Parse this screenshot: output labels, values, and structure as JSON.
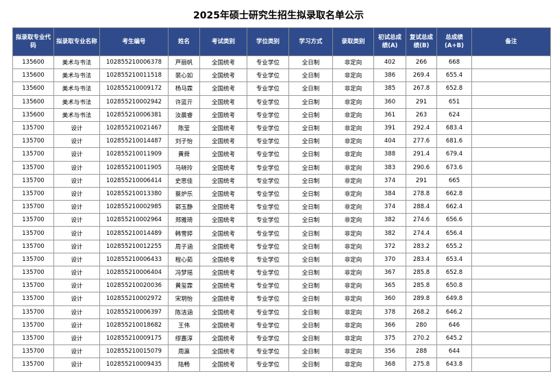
{
  "header": {
    "title": "2025年硕士研究生招生拟录取名单公示"
  },
  "table": {
    "columns": [
      "拟录取专业代码",
      "拟录取专业名称",
      "考生编号",
      "姓名",
      "考试类别",
      "学位类别",
      "学习方式",
      "录取类别",
      "初试总成绩(A)",
      "复试总成绩(B)",
      "总成绩(A+B)",
      "备注"
    ],
    "rows": [
      [
        "135600",
        "美术与书法",
        "102855210006378",
        "芦丽帆",
        "全国统考",
        "专业学位",
        "全日制",
        "非定向",
        "402",
        "266",
        "668"
      ],
      [
        "135600",
        "美术与书法",
        "102855210011518",
        "裴心如",
        "全国统考",
        "专业学位",
        "全日制",
        "非定向",
        "386",
        "269.4",
        "655.4"
      ],
      [
        "135600",
        "美术与书法",
        "102855210009172",
        "杨马霖",
        "全国统考",
        "专业学位",
        "全日制",
        "非定向",
        "385",
        "267.8",
        "652.8"
      ],
      [
        "135600",
        "美术与书法",
        "102855210002942",
        "许蓝亓",
        "全国统考",
        "专业学位",
        "全日制",
        "非定向",
        "360",
        "291",
        "651"
      ],
      [
        "135600",
        "美术与书法",
        "102855210006381",
        "汝晨睿",
        "全国统考",
        "专业学位",
        "全日制",
        "非定向",
        "361",
        "263",
        "624"
      ],
      [
        "135700",
        "设计",
        "102855210021467",
        "陈莹",
        "全国统考",
        "专业学位",
        "全日制",
        "非定向",
        "391",
        "292.4",
        "683.4"
      ],
      [
        "135700",
        "设计",
        "102855210014487",
        "刘子怡",
        "全国统考",
        "专业学位",
        "全日制",
        "非定向",
        "404",
        "277.6",
        "681.6"
      ],
      [
        "135700",
        "设计",
        "102855210011909",
        "黄舜",
        "全国统考",
        "专业学位",
        "全日制",
        "非定向",
        "388",
        "291.4",
        "679.4"
      ],
      [
        "135700",
        "设计",
        "102855210011905",
        "马晓玲",
        "全国统考",
        "专业学位",
        "全日制",
        "非定向",
        "383",
        "290.6",
        "673.6"
      ],
      [
        "135700",
        "设计",
        "102855210006414",
        "史思佳",
        "全国统考",
        "专业学位",
        "全日制",
        "非定向",
        "374",
        "291",
        "665"
      ],
      [
        "135700",
        "设计",
        "102855210013380",
        "蔡炉乐",
        "全国统考",
        "专业学位",
        "全日制",
        "非定向",
        "384",
        "278.8",
        "662.8"
      ],
      [
        "135700",
        "设计",
        "102855210002985",
        "郭玉静",
        "全国统考",
        "专业学位",
        "全日制",
        "非定向",
        "374",
        "288.4",
        "662.4"
      ],
      [
        "135700",
        "设计",
        "102855210002964",
        "郑雅琦",
        "全国统考",
        "专业学位",
        "全日制",
        "非定向",
        "382",
        "274.6",
        "656.6"
      ],
      [
        "135700",
        "设计",
        "102855210014489",
        "韩雪婷",
        "全国统考",
        "专业学位",
        "全日制",
        "非定向",
        "382",
        "274.4",
        "656.4"
      ],
      [
        "135700",
        "设计",
        "102855210012255",
        "周子涵",
        "全国统考",
        "专业学位",
        "全日制",
        "非定向",
        "372",
        "283.2",
        "655.2"
      ],
      [
        "135700",
        "设计",
        "102855210006433",
        "程心茹",
        "全国统考",
        "专业学位",
        "全日制",
        "非定向",
        "370",
        "283.4",
        "653.4"
      ],
      [
        "135700",
        "设计",
        "102855210006404",
        "冯梦瑶",
        "全国统考",
        "专业学位",
        "全日制",
        "非定向",
        "367",
        "285.8",
        "652.8"
      ],
      [
        "135700",
        "设计",
        "102855210020036",
        "黄玺霖",
        "全国统考",
        "专业学位",
        "全日制",
        "非定向",
        "365",
        "285.8",
        "650.8"
      ],
      [
        "135700",
        "设计",
        "102855210002972",
        "宋玥怡",
        "全国统考",
        "专业学位",
        "全日制",
        "非定向",
        "360",
        "289.8",
        "649.8"
      ],
      [
        "135700",
        "设计",
        "102855210006397",
        "陈洁涵",
        "全国统考",
        "专业学位",
        "全日制",
        "非定向",
        "378",
        "268.2",
        "646.2"
      ],
      [
        "135700",
        "设计",
        "102855210018682",
        "王伟",
        "全国统考",
        "专业学位",
        "全日制",
        "非定向",
        "366",
        "280",
        "646"
      ],
      [
        "135700",
        "设计",
        "102855210009175",
        "缪嘉淳",
        "全国统考",
        "专业学位",
        "全日制",
        "非定向",
        "375",
        "270.2",
        "645.2"
      ],
      [
        "135700",
        "设计",
        "102855210015079",
        "周瀛",
        "全国统考",
        "专业学位",
        "全日制",
        "非定向",
        "356",
        "288",
        "644"
      ],
      [
        "135700",
        "设计",
        "102855210009435",
        "陆畅",
        "全国统考",
        "专业学位",
        "全日制",
        "非定向",
        "368",
        "275.8",
        "643.8"
      ]
    ]
  }
}
